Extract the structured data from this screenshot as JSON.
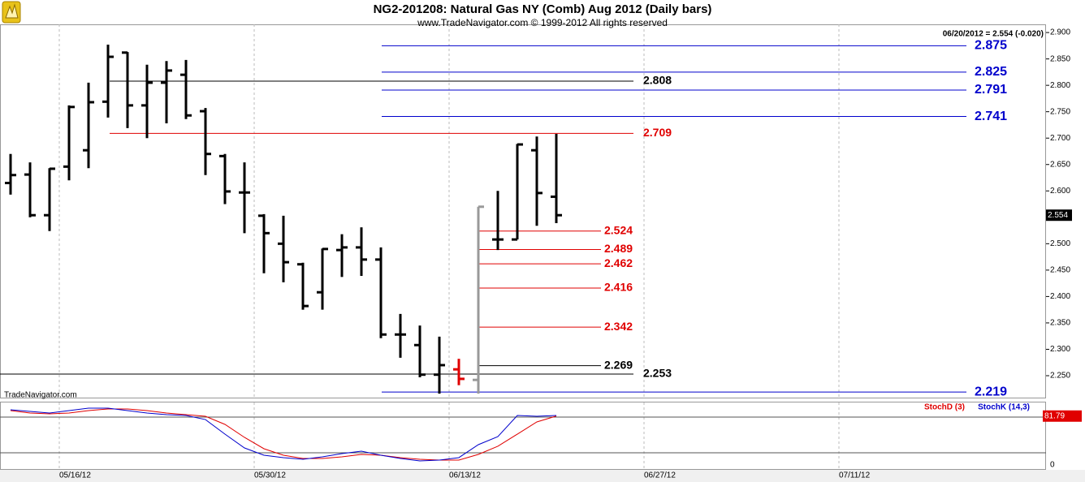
{
  "chart_data": [
    {
      "type": "ohlc",
      "title": "NG2-201208:  Natural Gas NY (Comb) Aug 2012  (Daily bars)",
      "subtitle": "www.TradeNavigator.com © 1999-2012 All rights reserved",
      "header": "06/20/2012 = 2.554 (-0.020)",
      "watermark": "TradeNavigator.com",
      "categories": [
        "05/11/12",
        "05/14/12",
        "05/15/12",
        "05/16/12",
        "05/17/12",
        "05/18/12",
        "05/21/12",
        "05/22/12",
        "05/23/12",
        "05/24/12",
        "05/25/12",
        "05/28/12",
        "05/29/12",
        "05/30/12",
        "05/31/12",
        "06/01/12",
        "06/04/12",
        "06/05/12",
        "06/06/12",
        "06/07/12",
        "06/08/12",
        "06/11/12",
        "06/12/12",
        "06/13/12",
        "06/14/12",
        "06/15/12",
        "06/18/12",
        "06/19/12",
        "06/20/12"
      ],
      "open": [
        2.615,
        2.631,
        2.554,
        2.646,
        2.677,
        2.769,
        2.862,
        2.762,
        2.805,
        2.82,
        2.751,
        2.666,
        2.597,
        2.553,
        2.5,
        2.461,
        2.408,
        2.488,
        2.493,
        2.47,
        2.328,
        2.308,
        2.252,
        2.262,
        2.242,
        2.508,
        2.508,
        2.677,
        2.589
      ],
      "high": [
        2.67,
        2.654,
        2.643,
        2.762,
        2.805,
        2.877,
        2.863,
        2.839,
        2.846,
        2.848,
        2.757,
        2.67,
        2.654,
        2.556,
        2.553,
        2.464,
        2.491,
        2.518,
        2.531,
        2.493,
        2.367,
        2.345,
        2.324,
        2.282,
        2.57,
        2.6,
        2.689,
        2.703,
        2.708
      ],
      "low": [
        2.593,
        2.55,
        2.524,
        2.62,
        2.643,
        2.739,
        2.719,
        2.7,
        2.728,
        2.736,
        2.63,
        2.575,
        2.52,
        2.444,
        2.427,
        2.375,
        2.375,
        2.437,
        2.439,
        2.321,
        2.284,
        2.247,
        2.216,
        2.232,
        2.216,
        2.488,
        2.508,
        2.534,
        2.539
      ],
      "close": [
        2.63,
        2.554,
        2.642,
        2.759,
        2.768,
        2.854,
        2.762,
        2.805,
        2.828,
        2.743,
        2.67,
        2.599,
        2.597,
        2.52,
        2.465,
        2.382,
        2.49,
        2.493,
        2.47,
        2.328,
        2.328,
        2.252,
        2.27,
        2.244,
        2.57,
        2.508,
        2.688,
        2.596,
        2.554
      ],
      "colors": [
        "#000000",
        "#000000",
        "#000000",
        "#000000",
        "#000000",
        "#000000",
        "#000000",
        "#000000",
        "#000000",
        "#000000",
        "#000000",
        "#000000",
        "#000000",
        "#000000",
        "#000000",
        "#000000",
        "#000000",
        "#000000",
        "#000000",
        "#000000",
        "#000000",
        "#000000",
        "#000000",
        "#e00000",
        "#999999",
        "#000000",
        "#000000",
        "#000000",
        "#000000"
      ],
      "ylim": [
        2.2085,
        2.9155
      ],
      "yticks": [
        {
          "value": 2.25,
          "label": "2.250"
        },
        {
          "value": 2.3,
          "label": "2.300"
        },
        {
          "value": 2.35,
          "label": "2.350"
        },
        {
          "value": 2.4,
          "label": "2.400"
        },
        {
          "value": 2.45,
          "label": "2.450"
        },
        {
          "value": 2.5,
          "label": "2.500"
        },
        {
          "value": 2.55,
          "label": "2.550"
        },
        {
          "value": 2.6,
          "label": "2.600"
        },
        {
          "value": 2.65,
          "label": "2.650"
        },
        {
          "value": 2.7,
          "label": "2.700"
        },
        {
          "value": 2.75,
          "label": "2.750"
        },
        {
          "value": 2.8,
          "label": "2.800"
        },
        {
          "value": 2.85,
          "label": "2.850"
        },
        {
          "value": 2.9,
          "label": "2.900"
        }
      ],
      "xticks": [
        "05/16/12",
        "05/30/12",
        "06/13/12",
        "06/27/12",
        "07/11/12"
      ],
      "grid": true,
      "levels": [
        {
          "value": 2.875,
          "color": "#0000cc"
        },
        {
          "value": 2.825,
          "color": "#0000cc"
        },
        {
          "value": 2.808,
          "color": "#000000"
        },
        {
          "value": 2.791,
          "color": "#0000cc"
        },
        {
          "value": 2.741,
          "color": "#0000cc"
        },
        {
          "value": 2.709,
          "color": "#e00000"
        },
        {
          "value": 2.524,
          "color": "#e00000"
        },
        {
          "value": 2.489,
          "color": "#e00000"
        },
        {
          "value": 2.462,
          "color": "#e00000"
        },
        {
          "value": 2.416,
          "color": "#e00000"
        },
        {
          "value": 2.342,
          "color": "#e00000"
        },
        {
          "value": 2.269,
          "color": "#000000"
        },
        {
          "value": 2.253,
          "color": "#000000"
        },
        {
          "value": 2.219,
          "color": "#0000cc"
        }
      ]
    },
    {
      "type": "line",
      "series": [
        {
          "name": "StochD (3)",
          "color": "#e00000",
          "values": [
            91.0,
            86.9,
            85.5,
            86.9,
            91.0,
            93.7,
            93.7,
            91.0,
            86.9,
            84.2,
            81.4,
            67.8,
            46.0,
            26.9,
            16.0,
            10.5,
            10.5,
            13.2,
            17.3,
            16.0,
            11.9,
            9.1,
            7.8,
            7.8,
            17.3,
            31.0,
            51.4,
            71.9,
            81.79
          ]
        },
        {
          "name": "StochK (14,3)",
          "color": "#0000cc",
          "values": [
            92.4,
            89.6,
            86.9,
            91.0,
            95.1,
            95.1,
            91.0,
            86.9,
            84.2,
            82.8,
            75.9,
            51.4,
            28.2,
            16.0,
            11.9,
            9.1,
            13.2,
            18.7,
            22.8,
            16.0,
            10.5,
            6.4,
            7.8,
            11.9,
            33.7,
            47.3,
            82.8,
            81.4,
            82.8
          ]
        }
      ],
      "ylim": [
        0,
        100
      ],
      "yticks": [
        0
      ],
      "levels": [
        20,
        80
      ]
    }
  ]
}
